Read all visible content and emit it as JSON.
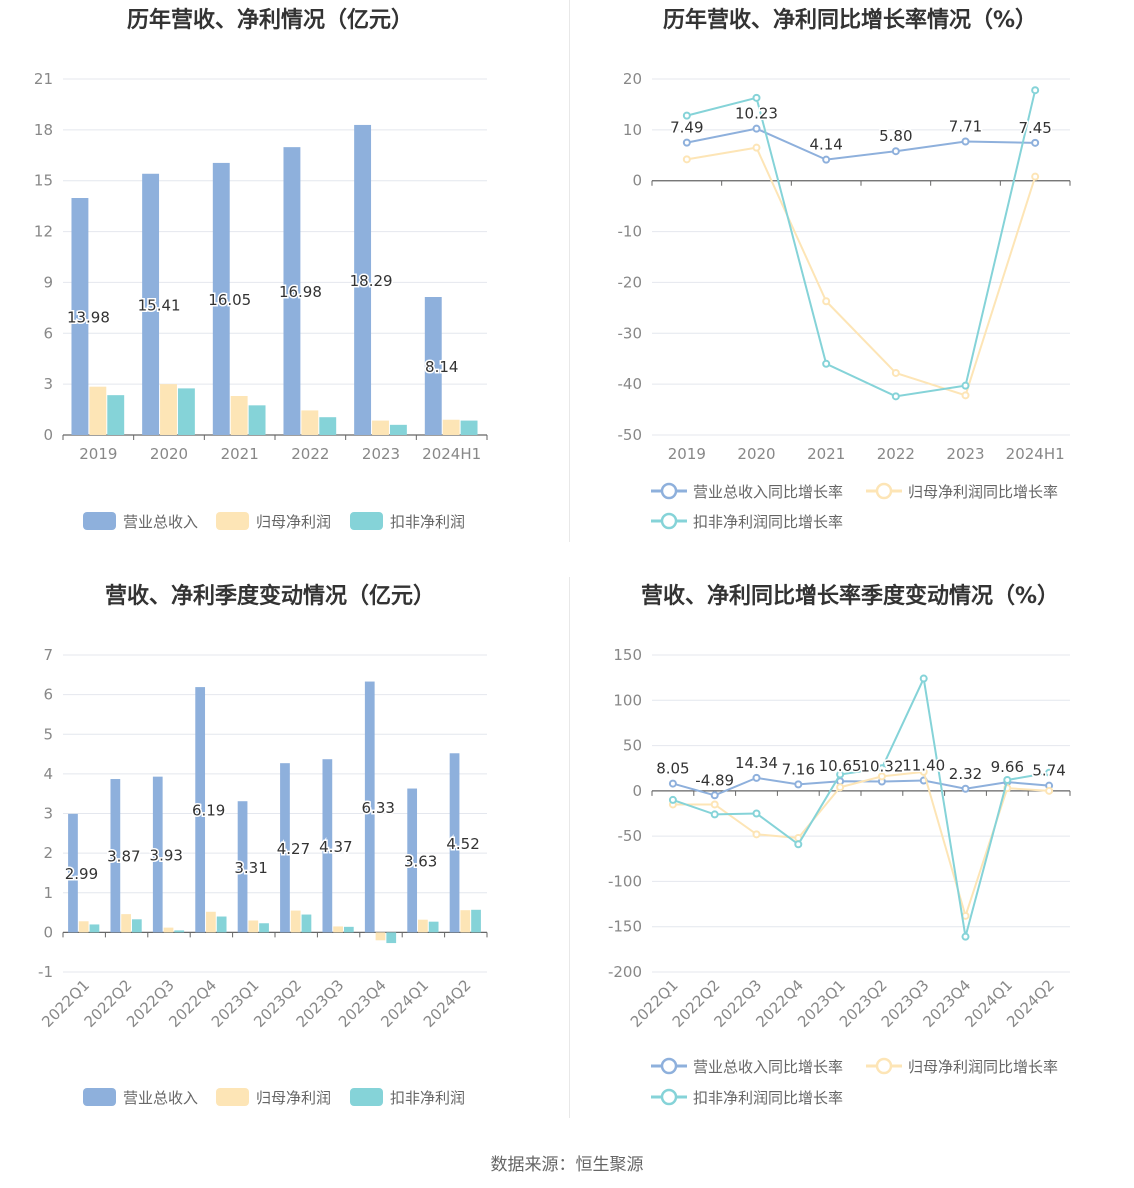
{
  "source": "数据来源：恒生聚源",
  "colors": {
    "revenue": "#8eb0dc",
    "parent_profit": "#fde5b6",
    "deducted_profit": "#85d3d8",
    "axis": "#888888",
    "grid": "#e4e7ee",
    "label": "#333333",
    "title": "#333333",
    "legend_text": "#666666"
  },
  "chart_data": [
    {
      "type": "bar",
      "title": "历年营收、净利情况（亿元）",
      "categories": [
        "2019",
        "2020",
        "2021",
        "2022",
        "2023",
        "2024H1"
      ],
      "ylim": [
        0,
        21
      ],
      "yticks": [
        0,
        3,
        6,
        9,
        12,
        15,
        18,
        21
      ],
      "series": [
        {
          "name": "营业总收入",
          "values": [
            13.98,
            15.41,
            16.05,
            16.98,
            18.29,
            8.14
          ],
          "labels": [
            "13.98",
            "15.41",
            "16.05",
            "16.98",
            "18.29",
            "8.14"
          ]
        },
        {
          "name": "归母净利润",
          "values": [
            2.85,
            3.0,
            2.3,
            1.45,
            0.85,
            0.9
          ]
        },
        {
          "name": "扣非净利润",
          "values": [
            2.35,
            2.75,
            1.75,
            1.05,
            0.6,
            0.85
          ]
        }
      ],
      "legend": [
        "营业总收入",
        "归母净利润",
        "扣非净利润"
      ]
    },
    {
      "type": "line",
      "title": "历年营收、净利同比增长率情况（%）",
      "categories": [
        "2019",
        "2020",
        "2021",
        "2022",
        "2023",
        "2024H1"
      ],
      "ylim": [
        -50,
        20
      ],
      "yticks": [
        -50,
        -40,
        -30,
        -20,
        -10,
        0,
        10,
        20
      ],
      "series": [
        {
          "name": "营业总收入同比增长率",
          "values": [
            7.49,
            10.23,
            4.14,
            5.8,
            7.71,
            7.45
          ],
          "labels": [
            "7.49",
            "10.23",
            "4.14",
            "5.80",
            "7.71",
            "7.45"
          ]
        },
        {
          "name": "归母净利润同比增长率",
          "values": [
            4.2,
            6.5,
            -23.7,
            -37.8,
            -42.2,
            0.8
          ]
        },
        {
          "name": "扣非净利润同比增长率",
          "values": [
            12.8,
            16.3,
            -36.0,
            -42.4,
            -40.3,
            17.8
          ]
        }
      ],
      "legend": [
        "营业总收入同比增长率",
        "归母净利润同比增长率",
        "扣非净利润同比增长率"
      ]
    },
    {
      "type": "bar",
      "title": "营收、净利季度变动情况（亿元）",
      "categories": [
        "2022Q1",
        "2022Q2",
        "2022Q3",
        "2022Q4",
        "2023Q1",
        "2023Q2",
        "2023Q3",
        "2023Q4",
        "2024Q1",
        "2024Q2"
      ],
      "ylim": [
        -1,
        7
      ],
      "yticks": [
        -1,
        0,
        1,
        2,
        3,
        4,
        5,
        6,
        7
      ],
      "series": [
        {
          "name": "营业总收入",
          "values": [
            2.99,
            3.87,
            3.93,
            6.19,
            3.31,
            4.27,
            4.37,
            6.33,
            3.63,
            4.52
          ],
          "labels": [
            "2.99",
            "3.87",
            "3.93",
            "6.19",
            "3.31",
            "4.27",
            "4.37",
            "6.33",
            "3.63",
            "4.52"
          ]
        },
        {
          "name": "归母净利润",
          "values": [
            0.28,
            0.46,
            0.12,
            0.52,
            0.3,
            0.55,
            0.15,
            -0.2,
            0.32,
            0.56
          ]
        },
        {
          "name": "扣非净利润",
          "values": [
            0.2,
            0.33,
            0.05,
            0.4,
            0.23,
            0.45,
            0.14,
            -0.27,
            0.27,
            0.57
          ]
        }
      ],
      "legend": [
        "营业总收入",
        "归母净利润",
        "扣非净利润"
      ]
    },
    {
      "type": "line",
      "title": "营收、净利同比增长率季度变动情况（%）",
      "categories": [
        "2022Q1",
        "2022Q2",
        "2022Q3",
        "2022Q4",
        "2023Q1",
        "2023Q2",
        "2023Q3",
        "2023Q4",
        "2024Q1",
        "2024Q2"
      ],
      "ylim": [
        -200,
        150
      ],
      "yticks": [
        -200,
        -150,
        -100,
        -50,
        0,
        50,
        100,
        150
      ],
      "series": [
        {
          "name": "营业总收入同比增长率",
          "values": [
            8.05,
            -4.89,
            14.34,
            7.16,
            10.65,
            10.32,
            11.4,
            2.32,
            9.66,
            5.74
          ],
          "labels": [
            "8.05",
            "-4.89",
            "14.34",
            "7.16",
            "10.65",
            "10.32",
            "11.40",
            "2.32",
            "9.66",
            "5.74"
          ]
        },
        {
          "name": "归母净利润同比增长率",
          "values": [
            -15,
            -15,
            -48,
            -52,
            4,
            16,
            21,
            -138,
            3,
            0
          ]
        },
        {
          "name": "扣非净利润同比增长率",
          "values": [
            -10,
            -26,
            -25,
            -59,
            18,
            25,
            124,
            -161,
            12,
            20
          ]
        }
      ],
      "legend": [
        "营业总收入同比增长率",
        "归母净利润同比增长率",
        "扣非净利润同比增长率"
      ]
    }
  ]
}
